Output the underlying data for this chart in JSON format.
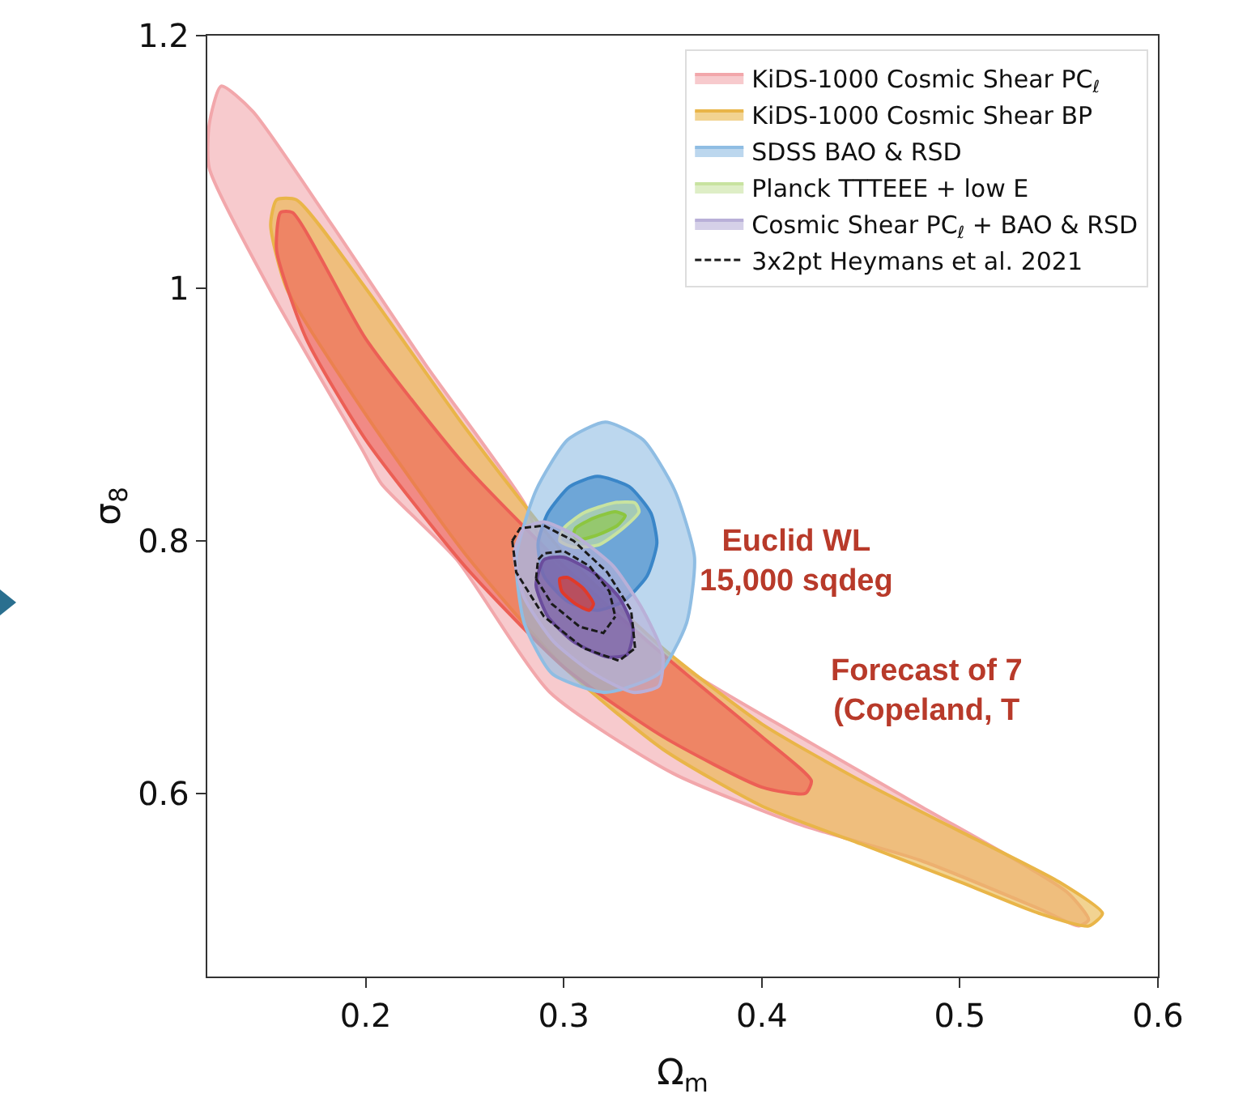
{
  "chart_data": {
    "type": "area",
    "xlabel": "Ω$_{m}$",
    "ylabel": "σ$_{8}$",
    "xlim": [
      0.12,
      0.6
    ],
    "ylim": [
      0.455,
      1.2
    ],
    "xticks": [
      0.2,
      0.3,
      0.4,
      0.5,
      0.6
    ],
    "yticks": [
      0.6,
      0.8,
      1.0,
      1.2
    ],
    "grid": false,
    "legend": "top right",
    "annotations": [
      "Euclid WL\n15,000 sqdeg",
      "Forecast of 7\n(Copeland, T"
    ],
    "series": [
      {
        "name": "KiDS-1000 Cosmic Shear PC$_{ℓ}$",
        "color": "#f2a7ab",
        "x": [
          0.127,
          0.143,
          0.183,
          0.23,
          0.28,
          0.293,
          0.355,
          0.418,
          0.48,
          0.554,
          0.565,
          0.56,
          0.541,
          0.48,
          0.418,
          0.355,
          0.293,
          0.246,
          0.208,
          0.199,
          0.153,
          0.121,
          0.121,
          0.127
        ],
        "values": [
          1.16,
          1.14,
          1.05,
          0.94,
          0.83,
          0.785,
          0.705,
          0.646,
          0.59,
          0.522,
          0.5,
          0.495,
          0.508,
          0.547,
          0.576,
          0.616,
          0.68,
          0.785,
          0.845,
          0.87,
          0.995,
          1.095,
          1.13,
          1.16
        ]
      },
      {
        "name": "KiDS-1000 Cosmic Shear BP",
        "color": "#e9b548",
        "x": [
          0.155,
          0.165,
          0.2,
          0.25,
          0.3,
          0.35,
          0.4,
          0.45,
          0.5,
          0.55,
          0.572,
          0.565,
          0.54,
          0.5,
          0.45,
          0.4,
          0.35,
          0.3,
          0.25,
          0.2,
          0.16,
          0.152,
          0.155
        ],
        "values": [
          1.07,
          1.07,
          1.0,
          0.89,
          0.79,
          0.715,
          0.655,
          0.61,
          0.57,
          0.53,
          0.505,
          0.495,
          0.505,
          0.53,
          0.56,
          0.59,
          0.635,
          0.7,
          0.79,
          0.9,
          1.0,
          1.05,
          1.07
        ]
      },
      {
        "color": "#ec5f55",
        "x": [
          0.157,
          0.163,
          0.2,
          0.25,
          0.3,
          0.35,
          0.4,
          0.425,
          0.422,
          0.4,
          0.35,
          0.3,
          0.25,
          0.2,
          0.17,
          0.155,
          0.157
        ],
        "values": [
          1.06,
          1.06,
          0.96,
          0.86,
          0.78,
          0.71,
          0.645,
          0.61,
          0.6,
          0.605,
          0.645,
          0.7,
          0.78,
          0.88,
          0.96,
          1.03,
          1.06
        ]
      },
      {
        "name": "SDSS BAO & RSD",
        "color": "#8fbde3",
        "x": [
          0.321,
          0.34,
          0.356,
          0.366,
          0.362,
          0.348,
          0.321,
          0.294,
          0.28,
          0.276,
          0.286,
          0.302,
          0.321
        ],
        "values": [
          0.894,
          0.88,
          0.84,
          0.787,
          0.735,
          0.695,
          0.68,
          0.695,
          0.735,
          0.787,
          0.84,
          0.88,
          0.894
        ]
      },
      {
        "color": "#3a86c8",
        "x": [
          0.317,
          0.333,
          0.344,
          0.347,
          0.342,
          0.33,
          0.317,
          0.302,
          0.29,
          0.287,
          0.292,
          0.303,
          0.317
        ],
        "values": [
          0.851,
          0.843,
          0.822,
          0.798,
          0.772,
          0.752,
          0.745,
          0.752,
          0.772,
          0.798,
          0.822,
          0.843,
          0.851
        ]
      },
      {
        "name": "Planck TTTEEE + low E",
        "color": "#c8e3a0",
        "x": [
          0.3,
          0.31,
          0.325,
          0.336,
          0.338,
          0.33,
          0.318,
          0.305,
          0.298,
          0.3
        ],
        "values": [
          0.81,
          0.822,
          0.83,
          0.83,
          0.823,
          0.81,
          0.797,
          0.795,
          0.8,
          0.81
        ]
      },
      {
        "color": "#8cc63f",
        "x": [
          0.306,
          0.315,
          0.326,
          0.331,
          0.327,
          0.316,
          0.307,
          0.305,
          0.306
        ],
        "values": [
          0.81,
          0.818,
          0.823,
          0.82,
          0.812,
          0.804,
          0.801,
          0.805,
          0.81
        ]
      },
      {
        "name": "Cosmic Shear PC$_{ℓ}$ + BAO & RSD",
        "color": "#b9b0d8",
        "x": [
          0.28,
          0.29,
          0.305,
          0.325,
          0.34,
          0.35,
          0.348,
          0.335,
          0.315,
          0.295,
          0.28,
          0.275,
          0.28
        ],
        "values": [
          0.81,
          0.815,
          0.805,
          0.78,
          0.745,
          0.71,
          0.685,
          0.68,
          0.695,
          0.72,
          0.755,
          0.79,
          0.81
        ]
      },
      {
        "color": "#6a4c9c",
        "x": [
          0.29,
          0.3,
          0.315,
          0.328,
          0.335,
          0.332,
          0.322,
          0.305,
          0.292,
          0.286,
          0.29
        ],
        "values": [
          0.785,
          0.787,
          0.775,
          0.755,
          0.73,
          0.71,
          0.708,
          0.72,
          0.74,
          0.765,
          0.785
        ]
      },
      {
        "color": "#e03a2a",
        "x": [
          0.298,
          0.302,
          0.31,
          0.315,
          0.313,
          0.306,
          0.299,
          0.298
        ],
        "values": [
          0.77,
          0.771,
          0.762,
          0.75,
          0.745,
          0.75,
          0.76,
          0.77
        ]
      },
      {
        "name": "3x2pt Heymans et al. 2021",
        "type": "line",
        "line_style": "dashed",
        "color": "#1a1a1a",
        "x": [
          0.274,
          0.278,
          0.29,
          0.305,
          0.322,
          0.334,
          0.336
        ],
        "values": [
          0.8,
          0.81,
          0.812,
          0.8,
          0.775,
          0.745,
          0.715
        ]
      },
      {
        "type": "line",
        "line_style": "dashed",
        "color": "#1a1a1a",
        "x": [
          0.274,
          0.276,
          0.29,
          0.31,
          0.328,
          0.336
        ],
        "values": [
          0.8,
          0.775,
          0.74,
          0.715,
          0.705,
          0.715
        ]
      },
      {
        "type": "line",
        "line_style": "dashed",
        "color": "#1a1a1a",
        "x": [
          0.286,
          0.287,
          0.29,
          0.3,
          0.313,
          0.323,
          0.326
        ],
        "values": [
          0.77,
          0.785,
          0.79,
          0.792,
          0.78,
          0.76,
          0.74
        ]
      },
      {
        "type": "line",
        "line_style": "dashed",
        "color": "#1a1a1a",
        "x": [
          0.286,
          0.294,
          0.308,
          0.32,
          0.326
        ],
        "values": [
          0.77,
          0.75,
          0.732,
          0.727,
          0.74
        ]
      }
    ]
  }
}
